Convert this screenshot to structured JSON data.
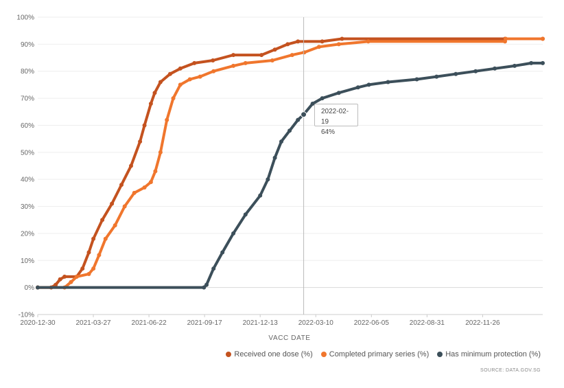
{
  "chart_data": {
    "type": "line",
    "xlabel": "VACC DATE",
    "ylim": [
      -10,
      100
    ],
    "xlim": [
      "2020-12-30",
      "2023-02-28"
    ],
    "y_ticks": [
      "-10%",
      "0%",
      "10%",
      "20%",
      "30%",
      "40%",
      "50%",
      "60%",
      "70%",
      "80%",
      "90%",
      "100%"
    ],
    "x_ticks": [
      "2020-12-30",
      "2021-03-27",
      "2021-06-22",
      "2021-09-17",
      "2021-12-13",
      "2022-03-10",
      "2022-06-05",
      "2022-08-31",
      "2022-11-26"
    ],
    "grid": true,
    "legend_position": "bottom-right",
    "series": [
      {
        "name": "Received one dose (%)",
        "color": "#c4521f",
        "points": [
          [
            "2020-12-30",
            0
          ],
          [
            "2021-01-20",
            0
          ],
          [
            "2021-01-27",
            1
          ],
          [
            "2021-02-03",
            3
          ],
          [
            "2021-02-10",
            4
          ],
          [
            "2021-03-01",
            4
          ],
          [
            "2021-03-10",
            7
          ],
          [
            "2021-03-20",
            13
          ],
          [
            "2021-03-27",
            18
          ],
          [
            "2021-04-10",
            25
          ],
          [
            "2021-04-25",
            31
          ],
          [
            "2021-05-10",
            38
          ],
          [
            "2021-05-25",
            45
          ],
          [
            "2021-06-08",
            54
          ],
          [
            "2021-06-15",
            60
          ],
          [
            "2021-06-25",
            68
          ],
          [
            "2021-07-01",
            72
          ],
          [
            "2021-07-10",
            76
          ],
          [
            "2021-07-25",
            79
          ],
          [
            "2021-08-10",
            81
          ],
          [
            "2021-09-01",
            83
          ],
          [
            "2021-09-30",
            84
          ],
          [
            "2021-11-01",
            86
          ],
          [
            "2021-12-15",
            86
          ],
          [
            "2022-01-05",
            88
          ],
          [
            "2022-01-25",
            90
          ],
          [
            "2022-02-10",
            91
          ],
          [
            "2022-03-20",
            91
          ],
          [
            "2022-04-20",
            92
          ],
          [
            "2022-12-31",
            92
          ],
          [
            "2023-02-28",
            92
          ]
        ]
      },
      {
        "name": "Completed primary series (%)",
        "color": "#f0762d",
        "points": [
          [
            "2020-12-30",
            0
          ],
          [
            "2021-02-10",
            0
          ],
          [
            "2021-02-20",
            2
          ],
          [
            "2021-03-01",
            4
          ],
          [
            "2021-03-20",
            5
          ],
          [
            "2021-03-27",
            7
          ],
          [
            "2021-04-05",
            12
          ],
          [
            "2021-04-15",
            18
          ],
          [
            "2021-04-30",
            23
          ],
          [
            "2021-05-15",
            30
          ],
          [
            "2021-05-30",
            35
          ],
          [
            "2021-06-15",
            37
          ],
          [
            "2021-06-25",
            39
          ],
          [
            "2021-07-02",
            43
          ],
          [
            "2021-07-10",
            50
          ],
          [
            "2021-07-20",
            62
          ],
          [
            "2021-07-30",
            70
          ],
          [
            "2021-08-10",
            75
          ],
          [
            "2021-08-25",
            77
          ],
          [
            "2021-09-10",
            78
          ],
          [
            "2021-10-01",
            80
          ],
          [
            "2021-11-01",
            82
          ],
          [
            "2021-11-20",
            83
          ],
          [
            "2022-01-01",
            84
          ],
          [
            "2022-02-01",
            86
          ],
          [
            "2022-02-20",
            87
          ],
          [
            "2022-03-15",
            89
          ],
          [
            "2022-04-15",
            90
          ],
          [
            "2022-05-31",
            91
          ],
          [
            "2022-12-31",
            91
          ],
          [
            "2023-01-01",
            92
          ],
          [
            "2023-02-28",
            92
          ]
        ]
      },
      {
        "name": "Has minimum protection (%)",
        "color": "#3c4f5a",
        "points": [
          [
            "2020-12-30",
            0
          ],
          [
            "2021-09-16",
            0
          ],
          [
            "2021-09-20",
            1
          ],
          [
            "2021-10-01",
            7
          ],
          [
            "2021-10-15",
            13
          ],
          [
            "2021-11-01",
            20
          ],
          [
            "2021-11-20",
            27
          ],
          [
            "2021-12-13",
            34
          ],
          [
            "2021-12-25",
            40
          ],
          [
            "2022-01-05",
            48
          ],
          [
            "2022-01-15",
            54
          ],
          [
            "2022-01-28",
            58
          ],
          [
            "2022-02-10",
            62
          ],
          [
            "2022-02-19",
            64
          ],
          [
            "2022-03-05",
            68
          ],
          [
            "2022-03-20",
            70
          ],
          [
            "2022-04-15",
            72
          ],
          [
            "2022-05-15",
            74
          ],
          [
            "2022-06-01",
            75
          ],
          [
            "2022-07-01",
            76
          ],
          [
            "2022-08-15",
            77
          ],
          [
            "2022-09-15",
            78
          ],
          [
            "2022-10-15",
            79
          ],
          [
            "2022-11-15",
            80
          ],
          [
            "2022-12-15",
            81
          ],
          [
            "2023-01-15",
            82
          ],
          [
            "2023-02-10",
            83
          ],
          [
            "2023-02-28",
            83
          ]
        ]
      }
    ],
    "tooltip": {
      "date": "2022-02-19",
      "value": "64%",
      "value_numeric": 64,
      "series": "Has minimum protection (%)"
    },
    "source": "SOURCE: DATA.GOV.SG"
  }
}
